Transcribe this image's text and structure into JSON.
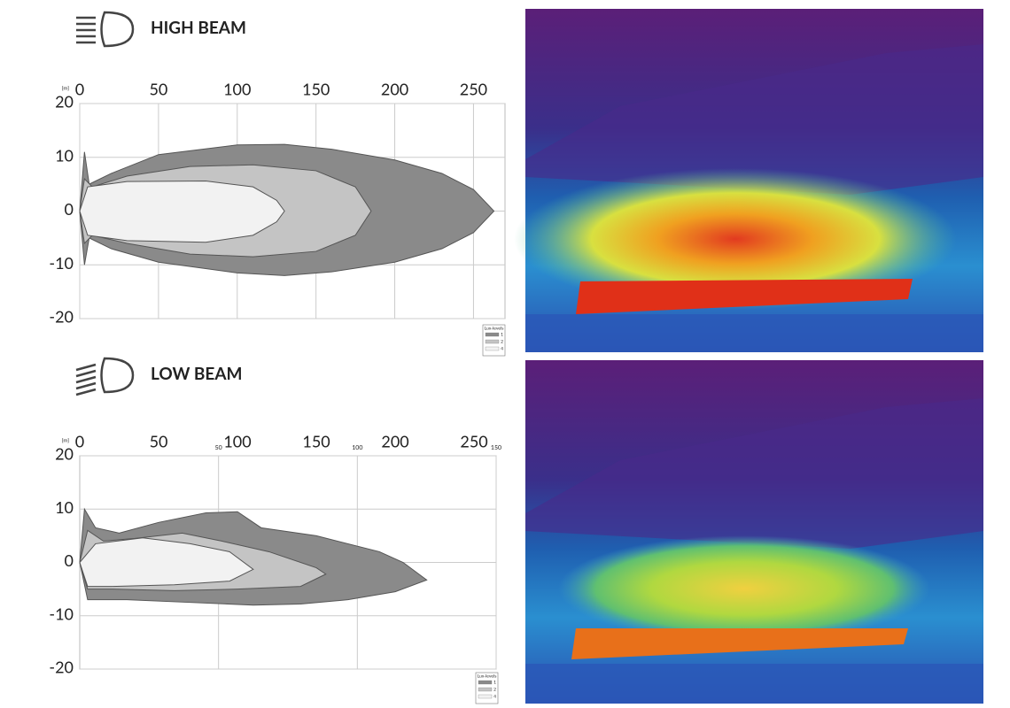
{
  "chart_data": [
    {
      "type": "contour",
      "title": "HIGH BEAM",
      "unit": "[m]",
      "xlim": [
        0,
        270
      ],
      "ylim": [
        -20,
        20
      ],
      "xticks": [
        0,
        50,
        100,
        150,
        200,
        250
      ],
      "yticks": [
        20,
        10,
        0,
        -10,
        -20
      ],
      "grid": true,
      "legend_title": "Lux-levels",
      "series": [
        {
          "name": "1",
          "color": "#8a8a8a",
          "x": [
            0,
            3,
            6,
            20,
            50,
            100,
            130,
            160,
            200,
            230,
            250,
            263,
            250,
            230,
            200,
            160,
            130,
            100,
            50,
            20,
            6,
            3
          ],
          "values": [
            0,
            11,
            5,
            7,
            10.5,
            12.3,
            12.4,
            11.5,
            9.5,
            7,
            4,
            0,
            -4,
            -7,
            -9.5,
            -11.3,
            -12,
            -11.5,
            -9.5,
            -7,
            -5,
            -10
          ]
        },
        {
          "name": "2",
          "color": "#c4c4c4",
          "x": [
            0,
            3,
            8,
            30,
            70,
            110,
            150,
            175,
            185,
            175,
            150,
            110,
            70,
            30,
            8,
            3
          ],
          "values": [
            0,
            6,
            4.5,
            6.5,
            8.3,
            8.6,
            7.5,
            4.5,
            0,
            -4.5,
            -7.5,
            -8.5,
            -8,
            -6,
            -4.5,
            -6
          ]
        },
        {
          "name": "4",
          "color": "#f2f2f2",
          "x": [
            0,
            5,
            30,
            80,
            110,
            125,
            130,
            125,
            110,
            80,
            30,
            5
          ],
          "values": [
            0,
            4.5,
            5.5,
            5.6,
            4.5,
            2,
            0,
            -2,
            -4.5,
            -5.8,
            -5.5,
            -4.5
          ]
        }
      ]
    },
    {
      "type": "contour",
      "title": "LOW BEAM",
      "unit": "[m]",
      "xlim": [
        0,
        264
      ],
      "ylim": [
        -20,
        20
      ],
      "x2lim": [
        0,
        150
      ],
      "xticks": [
        0,
        50,
        100,
        150,
        200,
        250
      ],
      "x2ticks": [
        50,
        100,
        150
      ],
      "yticks": [
        20,
        10,
        0,
        -10,
        -20
      ],
      "grid": true,
      "legend_title": "Lux-levels",
      "series": [
        {
          "name": "1",
          "color": "#8a8a8a",
          "x": [
            0,
            3,
            10,
            25,
            50,
            80,
            100,
            115,
            150,
            190,
            205,
            220,
            200,
            170,
            140,
            110,
            70,
            30,
            5
          ],
          "values": [
            0,
            10,
            6.5,
            5.5,
            7.5,
            9.3,
            9.5,
            6.5,
            5,
            2,
            0,
            -3.3,
            -5.5,
            -7,
            -7.8,
            -8,
            -7.5,
            -7,
            -7
          ]
        },
        {
          "name": "2",
          "color": "#c4c4c4",
          "x": [
            0,
            5,
            15,
            35,
            65,
            90,
            120,
            150,
            156,
            140,
            100,
            60,
            20,
            5
          ],
          "values": [
            0,
            6,
            4,
            4.5,
            5.5,
            4,
            2,
            -1,
            -2.2,
            -4.5,
            -5,
            -5.3,
            -5,
            -5
          ]
        },
        {
          "name": "4",
          "color": "#f2f2f2",
          "x": [
            0,
            10,
            40,
            70,
            95,
            110,
            95,
            60,
            20,
            5
          ],
          "values": [
            0,
            3.5,
            4.6,
            3.5,
            2,
            -1.3,
            -3.5,
            -4.2,
            -4.5,
            -4.5
          ]
        }
      ]
    }
  ]
}
